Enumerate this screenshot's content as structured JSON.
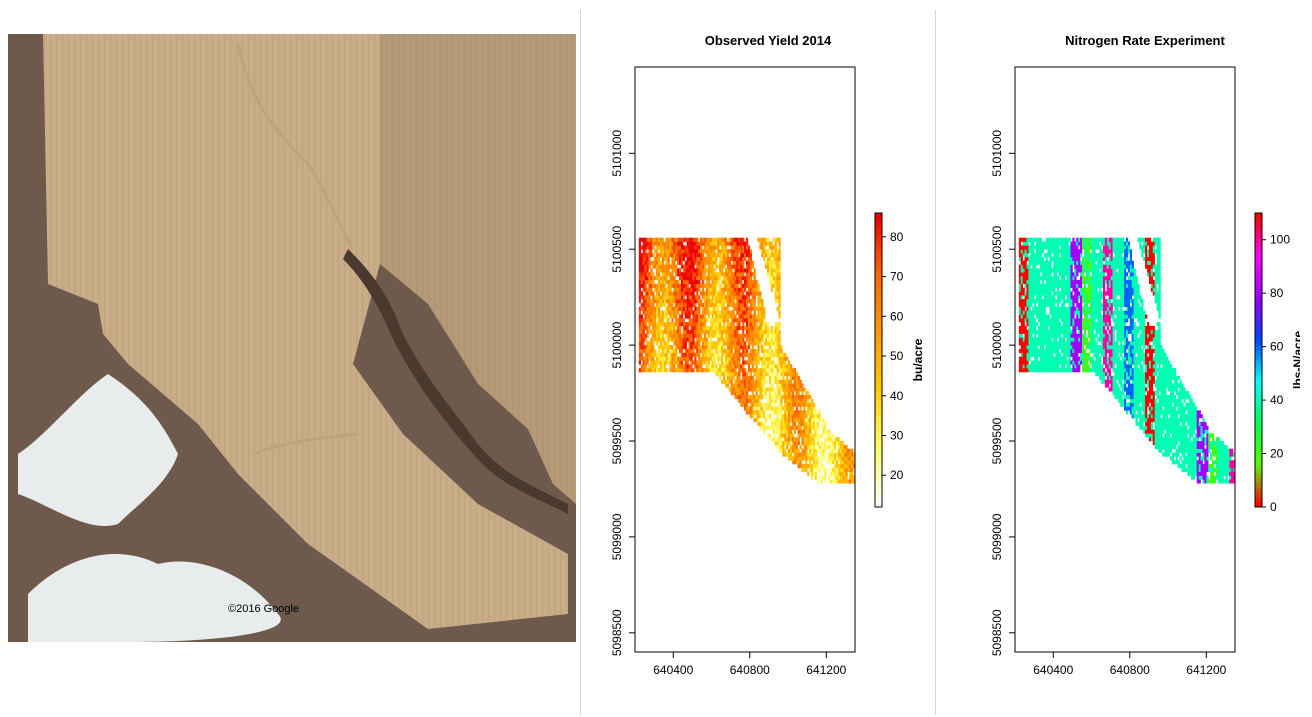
{
  "photo": {
    "watermark": "©2016 Google",
    "colors": {
      "field_light": "#c9ad89",
      "field_dark": "#b59a78",
      "creek": "#4a3a2e",
      "salt": "#e8ecec",
      "rangeland": "#6e5a4c"
    }
  },
  "chart_data": [
    {
      "type": "heatmap",
      "title": "Observed Yield  2014",
      "xlabel": "",
      "ylabel": "",
      "xlim": [
        640200,
        641350
      ],
      "ylim": [
        5098400,
        5101450
      ],
      "x_ticks": [
        640400,
        640800,
        641200
      ],
      "x_tick_labels": [
        "640400",
        "640800",
        "641200"
      ],
      "y_ticks": [
        5098500,
        5099000,
        5099500,
        5100000,
        5100500,
        5101000
      ],
      "y_tick_labels": [
        "5098500",
        "5099000",
        "5099500",
        "5100000",
        "5100500",
        "5101000"
      ],
      "legend": {
        "label": "bu/acre",
        "min": 12,
        "max": 86,
        "ticks": [
          20,
          30,
          40,
          50,
          60,
          70,
          80
        ],
        "tick_labels": [
          "20",
          "30",
          "40",
          "50",
          "60",
          "70",
          "80"
        ],
        "colors": [
          "#ffffff",
          "#ffff66",
          "#ffcc00",
          "#ff9900",
          "#ff6600",
          "#ee0000"
        ]
      },
      "field": {
        "boundary": [
          [
            640220,
            5100555
          ],
          [
            640960,
            5100555
          ],
          [
            640960,
            5100000
          ],
          [
            641230,
            5099540
          ],
          [
            641350,
            5099440
          ],
          [
            641350,
            5099280
          ],
          [
            641160,
            5099280
          ],
          [
            640950,
            5099450
          ],
          [
            640620,
            5099850
          ],
          [
            640220,
            5099860
          ]
        ],
        "gap": [
          [
            640790,
            5100555
          ],
          [
            640840,
            5100555
          ],
          [
            640960,
            5100130
          ],
          [
            640900,
            5100090
          ]
        ]
      }
    },
    {
      "type": "heatmap",
      "title": "Nitrogen Rate Experiment",
      "xlabel": "",
      "ylabel": "",
      "xlim": [
        640200,
        641350
      ],
      "ylim": [
        5098400,
        5101450
      ],
      "x_ticks": [
        640400,
        640800,
        641200
      ],
      "x_tick_labels": [
        "640400",
        "640800",
        "641200"
      ],
      "y_ticks": [
        5098500,
        5099000,
        5099500,
        5100000,
        5100500,
        5101000
      ],
      "y_tick_labels": [
        "5098500",
        "5099000",
        "5099500",
        "5100000",
        "5100500",
        "5101000"
      ],
      "legend": {
        "label": "lbs-N/acre",
        "min": 0,
        "max": 110,
        "ticks": [
          0,
          20,
          40,
          60,
          80,
          100
        ],
        "tick_labels": [
          "0",
          "20",
          "40",
          "60",
          "80",
          "100"
        ],
        "colors": [
          "#ff0000",
          "#55ff00",
          "#00ff55",
          "#00ffff",
          "#0044ff",
          "#9900ff",
          "#ff00ff",
          "#ff0000"
        ]
      },
      "rates": [
        0,
        40,
        40,
        40,
        40,
        80,
        20,
        40,
        100,
        40,
        60,
        40
      ],
      "field": {
        "boundary": [
          [
            640220,
            5100555
          ],
          [
            640960,
            5100555
          ],
          [
            640960,
            5100000
          ],
          [
            641230,
            5099540
          ],
          [
            641350,
            5099440
          ],
          [
            641350,
            5099280
          ],
          [
            641160,
            5099280
          ],
          [
            640950,
            5099450
          ],
          [
            640620,
            5099850
          ],
          [
            640220,
            5099860
          ]
        ],
        "gap": [
          [
            640790,
            5100555
          ],
          [
            640840,
            5100555
          ],
          [
            640960,
            5100130
          ],
          [
            640900,
            5100090
          ]
        ]
      }
    }
  ]
}
